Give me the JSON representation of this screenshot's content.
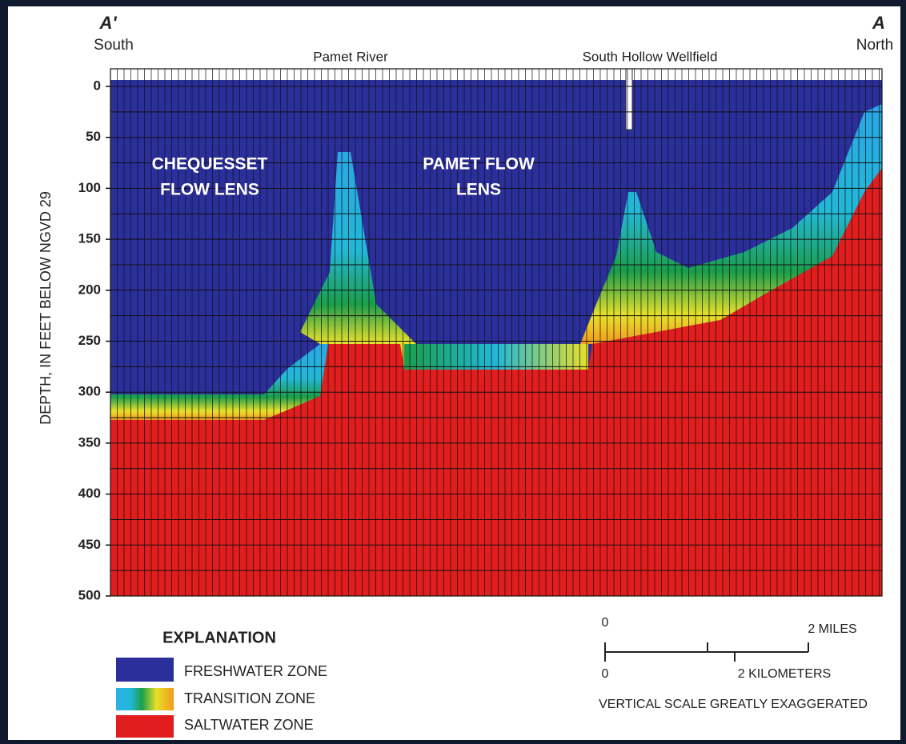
{
  "header": {
    "left_label": "A'",
    "left_direction": "South",
    "right_label": "A",
    "right_direction": "North"
  },
  "locations": [
    "Pamet River",
    "South Hollow Wellfield"
  ],
  "y_axis": {
    "label": "DEPTH, IN FEET BELOW NGVD 29",
    "lim": [
      0,
      500
    ],
    "ticks": [
      0,
      50,
      100,
      150,
      200,
      250,
      300,
      350,
      400,
      450,
      500
    ]
  },
  "lens_labels": [
    [
      "CHEQUESSET",
      "FLOW LENS"
    ],
    [
      "PAMET FLOW",
      "LENS"
    ]
  ],
  "legend": {
    "title": "EXPLANATION",
    "items": [
      "FRESHWATER ZONE",
      "TRANSITION ZONE",
      "SALTWATER ZONE"
    ]
  },
  "scale_bar": {
    "miles_zero": "0",
    "miles_label": "2 MILES",
    "km_zero": "0",
    "km_label": "2 KILOMETERS",
    "note": "VERTICAL SCALE GREATLY EXAGGERATED"
  }
}
